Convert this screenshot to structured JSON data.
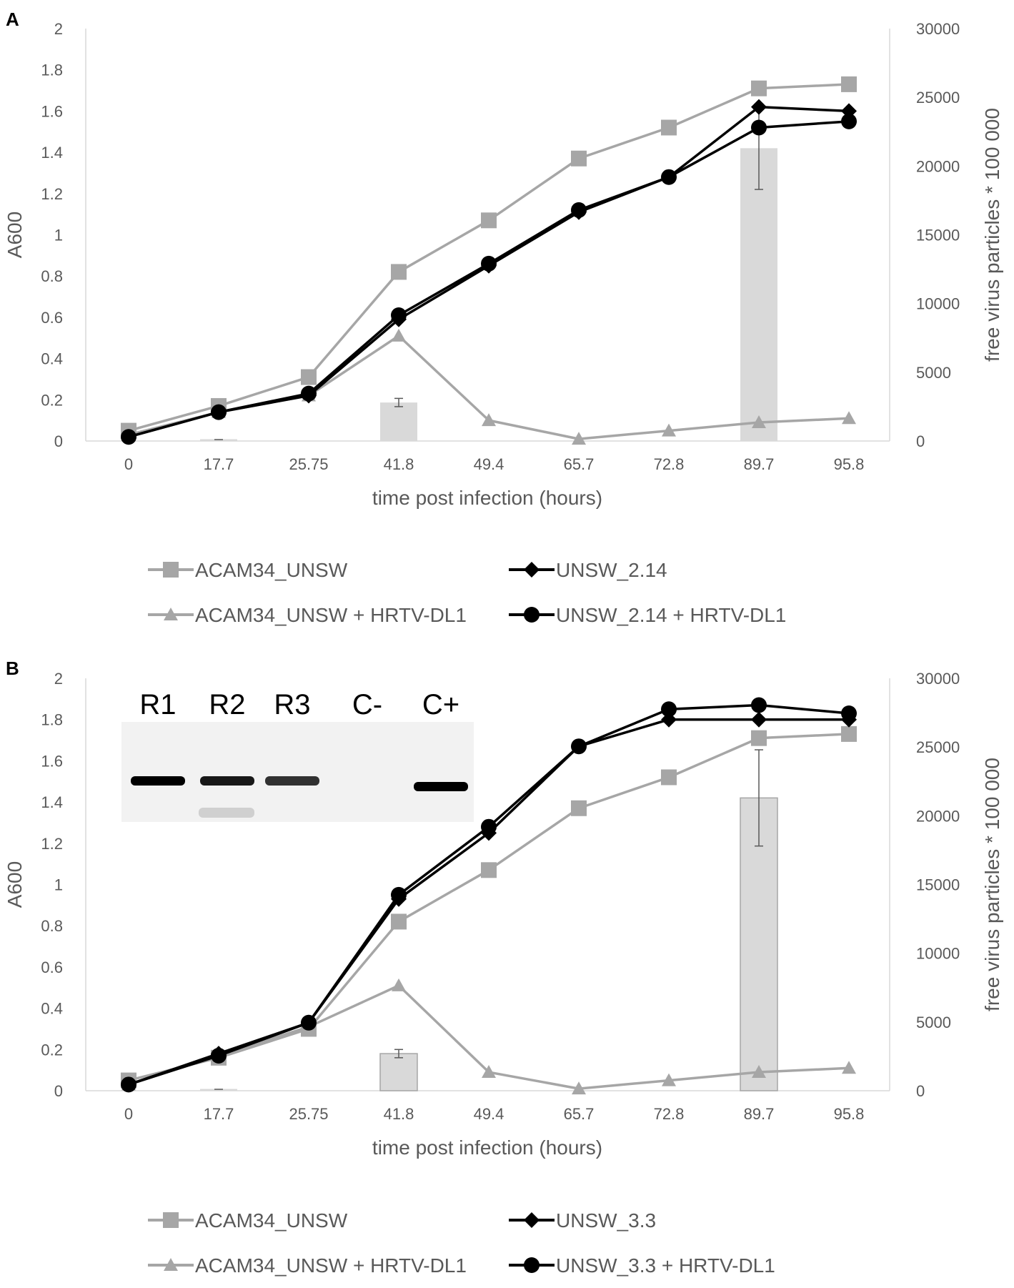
{
  "panels": [
    {
      "label": "A"
    },
    {
      "label": "B",
      "gel": {
        "lanes": [
          "R1",
          "R2",
          "R3",
          "C-",
          "C+"
        ],
        "band_intensity": [
          1,
          0.9,
          0.8,
          0,
          1
        ]
      }
    }
  ],
  "colors": {
    "gray_line": "#a6a6a6",
    "black_line": "#000000",
    "bar_fill": "#d9d9d9",
    "axis_text": "#595959",
    "grid": "#d9d9d9"
  },
  "chart_data": [
    {
      "type": "line+bar",
      "panel": "A",
      "categories": [
        "0",
        "17.7",
        "25.75",
        "41.8",
        "49.4",
        "65.7",
        "72.8",
        "89.7",
        "95.8"
      ],
      "xlabel": "time post infection (hours)",
      "ylabel": "A600",
      "y2label": "free virus particles * 100 000",
      "ylim": [
        0,
        2
      ],
      "yticks": [
        "0",
        "0.2",
        "0.4",
        "0.6",
        "0.8",
        "1",
        "1.2",
        "1.4",
        "1.6",
        "1.8",
        "2"
      ],
      "y2lim": [
        0,
        30000
      ],
      "y2ticks": [
        "0",
        "5000",
        "10000",
        "15000",
        "20000",
        "25000",
        "30000"
      ],
      "bars": {
        "axis": "secondary",
        "values": [
          0,
          0,
          0,
          2800,
          0,
          0,
          0,
          21300,
          0
        ],
        "errors": [
          0,
          0,
          0,
          300,
          0,
          0,
          0,
          3000,
          0
        ]
      },
      "series": [
        {
          "name": "ACAM34_UNSW",
          "marker": "square",
          "color": "#a6a6a6",
          "values": [
            0.05,
            0.17,
            0.31,
            0.82,
            1.07,
            1.37,
            1.52,
            1.71,
            1.73
          ]
        },
        {
          "name": "UNSW_2.14",
          "marker": "diamond",
          "color": "#000000",
          "values": [
            0.02,
            0.14,
            0.22,
            0.59,
            0.85,
            1.11,
            1.28,
            1.62,
            1.6
          ]
        },
        {
          "name": "ACAM34_UNSW + HRTV-DL1",
          "marker": "triangle",
          "color": "#a6a6a6",
          "values": [
            0.03,
            0.14,
            0.22,
            0.51,
            0.1,
            0.01,
            0.05,
            0.09,
            0.11
          ]
        },
        {
          "name": "UNSW_2.14 + HRTV-DL1",
          "marker": "circle",
          "color": "#000000",
          "values": [
            0.02,
            0.14,
            0.23,
            0.61,
            0.86,
            1.12,
            1.28,
            1.52,
            1.55
          ]
        }
      ]
    },
    {
      "type": "line+bar",
      "panel": "B",
      "categories": [
        "0",
        "17.7",
        "25.75",
        "41.8",
        "49.4",
        "65.7",
        "72.8",
        "89.7",
        "95.8"
      ],
      "xlabel": "time post infection (hours)",
      "ylabel": "A600",
      "y2label": "free virus particles * 100 000",
      "ylim": [
        0,
        2
      ],
      "yticks": [
        "0",
        "0.2",
        "0.4",
        "0.6",
        "0.8",
        "1",
        "1.2",
        "1.4",
        "1.6",
        "1.8",
        "2"
      ],
      "y2lim": [
        0,
        30000
      ],
      "y2ticks": [
        "0",
        "5000",
        "10000",
        "15000",
        "20000",
        "25000",
        "30000"
      ],
      "bars": {
        "axis": "secondary",
        "values": [
          0,
          0,
          0,
          2700,
          0,
          0,
          0,
          21300,
          0
        ],
        "errors": [
          0,
          0,
          0,
          300,
          0,
          0,
          0,
          3500,
          0
        ]
      },
      "series": [
        {
          "name": "ACAM34_UNSW",
          "marker": "square",
          "color": "#a6a6a6",
          "values": [
            0.05,
            0.16,
            0.3,
            0.82,
            1.07,
            1.37,
            1.52,
            1.71,
            1.73
          ]
        },
        {
          "name": "UNSW_3.3",
          "marker": "diamond",
          "color": "#000000",
          "values": [
            0.03,
            0.18,
            0.33,
            0.93,
            1.25,
            1.67,
            1.8,
            1.8,
            1.8
          ]
        },
        {
          "name": "ACAM34_UNSW + HRTV-DL1",
          "marker": "triangle",
          "color": "#a6a6a6",
          "values": [
            0.03,
            0.17,
            0.31,
            0.51,
            0.09,
            0.01,
            0.05,
            0.09,
            0.11
          ]
        },
        {
          "name": "UNSW_3.3 + HRTV-DL1",
          "marker": "circle",
          "color": "#000000",
          "values": [
            0.03,
            0.17,
            0.33,
            0.95,
            1.28,
            1.67,
            1.85,
            1.87,
            1.83
          ]
        }
      ]
    }
  ]
}
